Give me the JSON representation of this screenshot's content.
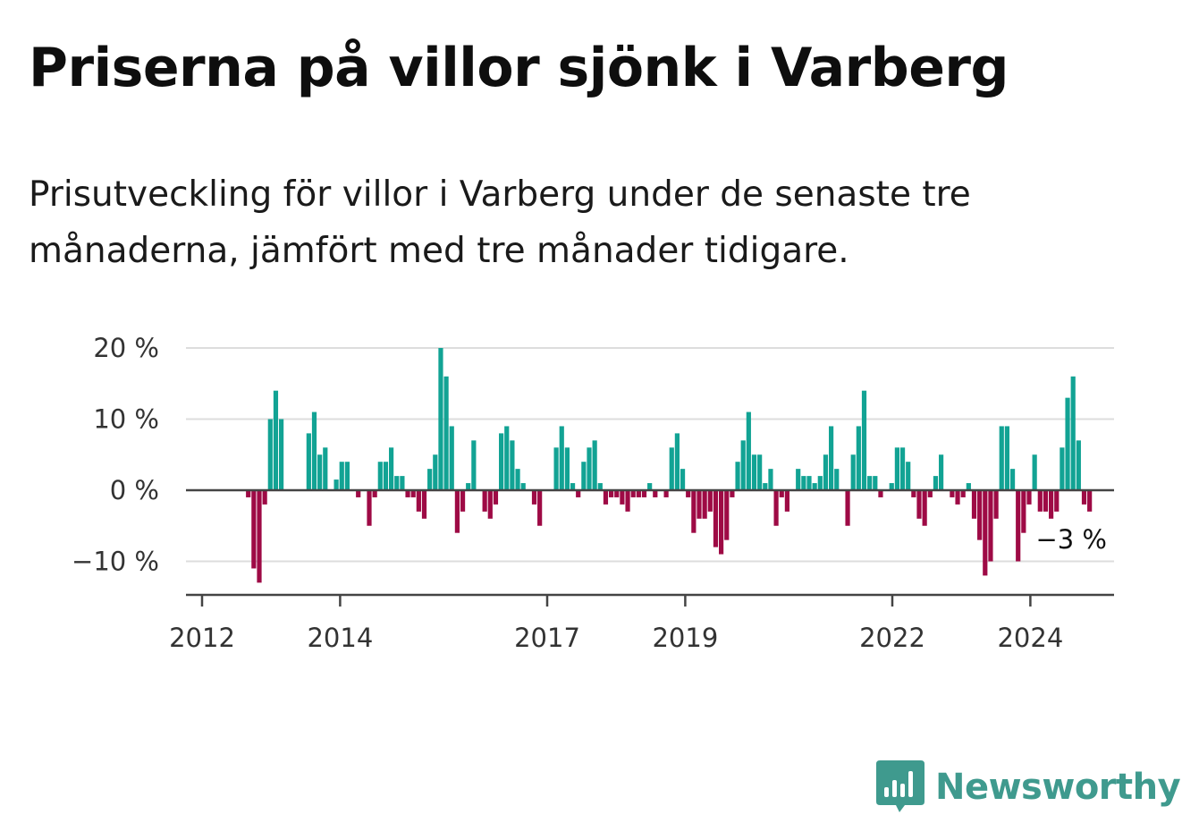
{
  "header": {
    "title": "Priserna på villor sjönk i Varberg",
    "subtitle": "Prisutveckling för villor i Varberg under de senaste tre månaderna, jämfört med tre månader tidigare."
  },
  "brand": {
    "name": "Newsworthy",
    "icon": "newsworthy-logo-icon",
    "color": "#3f9a8e"
  },
  "colors": {
    "positive": "#12a394",
    "negative": "#9e0a45",
    "grid": "#dddddd",
    "axis": "#444444"
  },
  "chart_data": {
    "type": "bar",
    "title": "Priserna på villor sjönk i Varberg",
    "xlabel": "",
    "ylabel": "",
    "ylim": [
      -14,
      21
    ],
    "yticks": [
      20,
      10,
      0,
      -10
    ],
    "ytick_labels": [
      "20 %",
      "10 %",
      "0 %",
      "−10 %"
    ],
    "xticks": [
      "2012",
      "2014",
      "2017",
      "2019",
      "2022",
      "2024"
    ],
    "grid": true,
    "legend": "none",
    "last_label": "−3 %",
    "x_start": "2012-01",
    "x_interval": "1 month",
    "values": [
      0,
      0,
      0,
      0,
      -1,
      -11,
      -13,
      -2,
      10,
      14,
      10,
      0,
      0,
      0,
      0,
      8,
      11,
      5,
      6,
      0,
      1.5,
      4,
      4,
      0,
      -1,
      0,
      -5,
      -1,
      4,
      4,
      6,
      2,
      2,
      -1,
      -1,
      -3,
      -4,
      3,
      5,
      20,
      16,
      9,
      -6,
      -3,
      1,
      7,
      0,
      -3,
      -4,
      -2,
      8,
      9,
      7,
      3,
      1,
      0,
      -2,
      -5,
      0,
      0,
      6,
      9,
      6,
      1,
      -1,
      4,
      6,
      7,
      1,
      -2,
      -1,
      -1,
      -2,
      -3,
      -1,
      -1,
      -1,
      1,
      -1,
      0,
      -1,
      6,
      8,
      3,
      -1,
      -6,
      -4,
      -4,
      -3,
      -8,
      -9,
      -7,
      -1,
      4,
      7,
      11,
      5,
      5,
      1,
      3,
      -5,
      -1,
      -3,
      0,
      3,
      2,
      2,
      1,
      2,
      5,
      9,
      3,
      0,
      -5,
      5,
      9,
      14,
      2,
      2,
      -1,
      0,
      1,
      6,
      6,
      4,
      -1,
      -4,
      -5,
      -1,
      2,
      5,
      0,
      -1,
      -2,
      -1,
      1,
      -4,
      -7,
      -12,
      -10,
      -4,
      9,
      9,
      3,
      -10,
      -6,
      -2,
      5,
      -3,
      -3,
      -4,
      -3,
      6,
      13,
      16,
      7,
      -2,
      -3
    ]
  }
}
